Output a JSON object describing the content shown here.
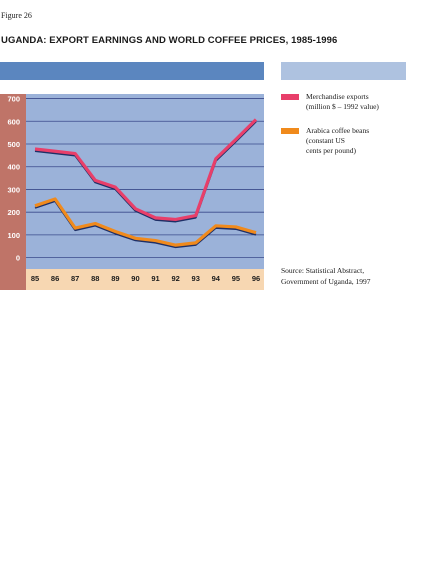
{
  "figure_label": "Figure 26",
  "title": "UGANDA: EXPORT EARNINGS AND WORLD COFFEE PRICES, 1985-1996",
  "legend": [
    {
      "label_line1": "Merchandise exports",
      "label_line2": "(million $ – 1992 value)",
      "label_line3": "",
      "color": "#e83f6a"
    },
    {
      "label_line1": "Arabica coffee beans",
      "label_line2": "(constant US",
      "label_line3": "cents per pound)",
      "color": "#f08a1c"
    }
  ],
  "source_line1": "Source: Statistical Abstract,",
  "source_line2": "Government of Uganda, 1997",
  "colors": {
    "plot_bg": "#9bb2d9",
    "y_axis_band": "#bf7468",
    "x_axis_band": "#f7d7b2",
    "grid": "#3a4a8a",
    "shadow": "#1e2f66",
    "header_bar_left": "#5b86bf",
    "header_bar_right": "#aec2e0"
  },
  "chart_data": {
    "type": "line",
    "x": [
      "85",
      "86",
      "87",
      "88",
      "89",
      "90",
      "91",
      "92",
      "93",
      "94",
      "95",
      "96"
    ],
    "series": [
      {
        "name": "Merchandise exports (million $ – 1992 value)",
        "values": [
          478,
          468,
          458,
          340,
          310,
          215,
          175,
          168,
          185,
          435,
          520,
          608
        ]
      },
      {
        "name": "Arabica coffee beans (constant US cents per pound)",
        "values": [
          228,
          258,
          130,
          150,
          115,
          85,
          75,
          55,
          65,
          140,
          135,
          110
        ]
      }
    ],
    "yticks": [
      "700",
      "600",
      "500",
      "400",
      "300",
      "200",
      "100",
      "0"
    ],
    "ylim": [
      -50,
      720
    ],
    "grid": true,
    "legend_position": "right"
  }
}
